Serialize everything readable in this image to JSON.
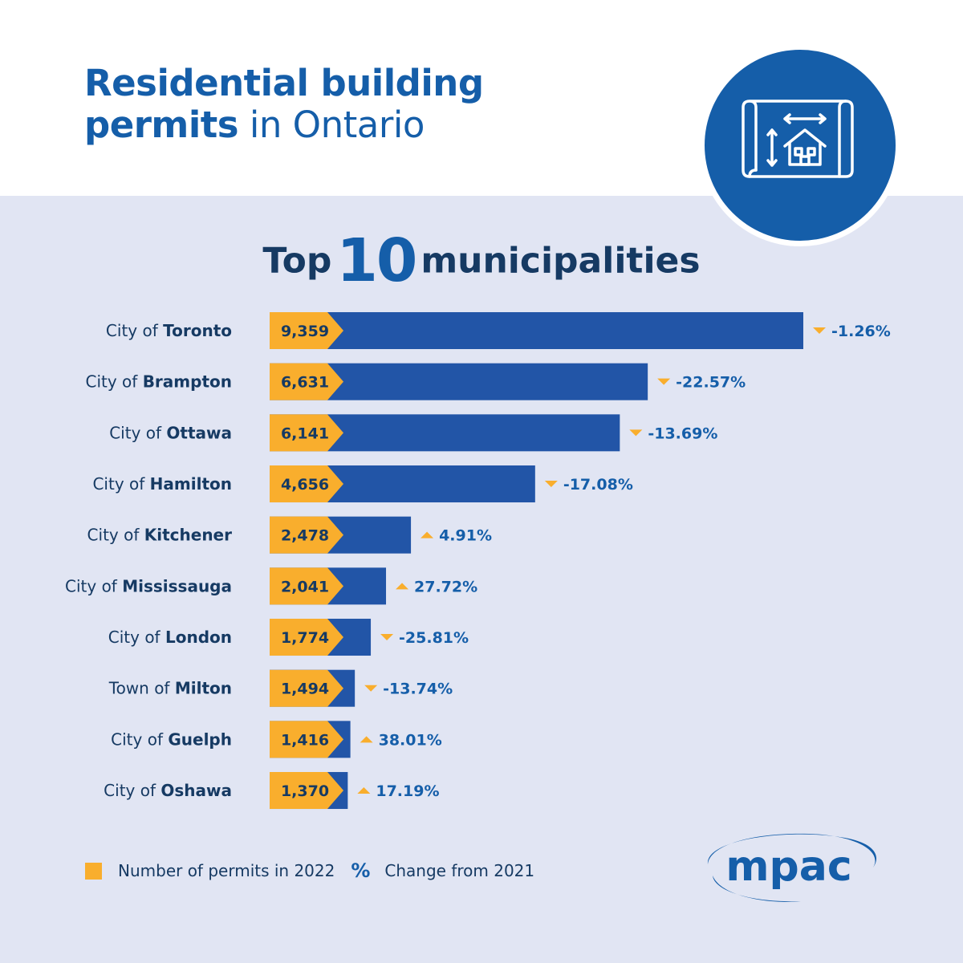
{
  "header": {
    "title_bold_1": "Residential building",
    "title_bold_2": "permits",
    "title_regular": " in Ontario"
  },
  "subtitle": {
    "pre": "Top",
    "number": "10",
    "post": "municipalities"
  },
  "icon": "blueprint-house-icon",
  "legend": {
    "count_label": "Number of permits in 2022",
    "change_symbol": "%",
    "change_label": "Change from 2021"
  },
  "logo": {
    "text": "mpac"
  },
  "colors": {
    "bar": "#2255a7",
    "badge": "#f9ae2d",
    "title": "#155ea9",
    "text": "#163a63",
    "background": "#e1e5f3"
  },
  "chart_data": {
    "type": "bar",
    "orientation": "horizontal",
    "title": "Top 10 municipalities",
    "xlabel": "",
    "ylabel": "",
    "xlim": [
      0,
      9359
    ],
    "series": [
      {
        "name": "Number of permits in 2022",
        "values": [
          9359,
          6631,
          6141,
          4656,
          2478,
          2041,
          1774,
          1494,
          1416,
          1370
        ]
      },
      {
        "name": "Change from 2021 (%)",
        "values": [
          -1.26,
          -22.57,
          -13.69,
          -17.08,
          4.91,
          27.72,
          -25.81,
          -13.74,
          38.01,
          17.19
        ]
      }
    ],
    "rows": [
      {
        "prefix": "City of ",
        "name": "Toronto",
        "value": 9359,
        "value_label": "9,359",
        "change": -1.26,
        "change_label": "-1.26%"
      },
      {
        "prefix": "City of ",
        "name": "Brampton",
        "value": 6631,
        "value_label": "6,631",
        "change": -22.57,
        "change_label": "-22.57%"
      },
      {
        "prefix": "City of ",
        "name": "Ottawa",
        "value": 6141,
        "value_label": "6,141",
        "change": -13.69,
        "change_label": "-13.69%"
      },
      {
        "prefix": "City of ",
        "name": "Hamilton",
        "value": 4656,
        "value_label": "4,656",
        "change": -17.08,
        "change_label": "-17.08%"
      },
      {
        "prefix": "City of ",
        "name": "Kitchener",
        "value": 2478,
        "value_label": "2,478",
        "change": 4.91,
        "change_label": "4.91%"
      },
      {
        "prefix": "City of ",
        "name": "Mississauga",
        "value": 2041,
        "value_label": "2,041",
        "change": 27.72,
        "change_label": "27.72%"
      },
      {
        "prefix": "City of ",
        "name": "London",
        "value": 1774,
        "value_label": "1,774",
        "change": -25.81,
        "change_label": "-25.81%"
      },
      {
        "prefix": "Town of ",
        "name": "Milton",
        "value": 1494,
        "value_label": "1,494",
        "change": -13.74,
        "change_label": "-13.74%"
      },
      {
        "prefix": "City of ",
        "name": "Guelph",
        "value": 1416,
        "value_label": "1,416",
        "change": 38.01,
        "change_label": "38.01%"
      },
      {
        "prefix": "City of ",
        "name": "Oshawa",
        "value": 1370,
        "value_label": "1,370",
        "change": 17.19,
        "change_label": "17.19%"
      }
    ]
  }
}
